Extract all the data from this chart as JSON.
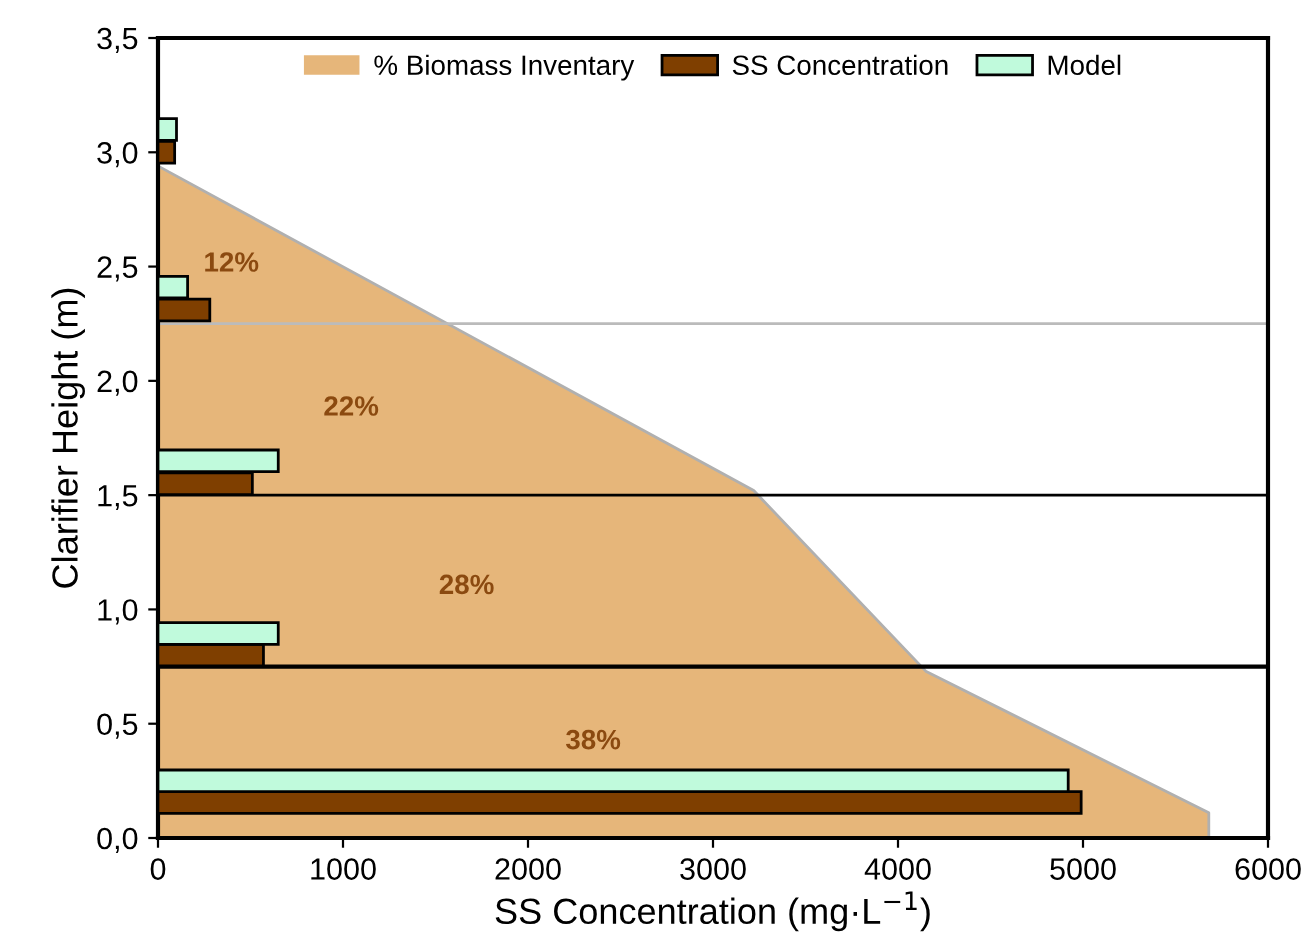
{
  "chart_data": {
    "type": "bar",
    "orientation": "horizontal",
    "xlabel": "SS Concentration (mg·L$^{−1}$)",
    "ylabel": "Clarifier Height (m)",
    "series": [
      {
        "name": "% Biomass Inventary",
        "type": "area",
        "color": "#e6b67a",
        "x": [
          0,
          0.11,
          0.73,
          1.52,
          2.94
        ],
        "values": [
          5680,
          5680,
          4150,
          3220,
          0
        ]
      },
      {
        "name": "SS Concentration",
        "color": "#7f3f00",
        "x": [
          0.155,
          0.8,
          1.55,
          2.31,
          3.0
        ],
        "values": [
          4990,
          570,
          510,
          280,
          90
        ]
      },
      {
        "name": "Model",
        "color": "#c0fadc",
        "x": [
          0.25,
          0.895,
          1.65,
          2.41,
          3.1
        ],
        "values": [
          4920,
          650,
          650,
          160,
          100
        ]
      }
    ],
    "xlim": [
      0,
      6000
    ],
    "xticks": [
      0,
      1000,
      2000,
      3000,
      4000,
      5000,
      6000
    ],
    "ylim": [
      0,
      3.5
    ],
    "yticks": [
      {
        "value": 0,
        "label": "0,0"
      },
      {
        "value": 0.5,
        "label": "0,5"
      },
      {
        "value": 1,
        "label": "1,0"
      },
      {
        "value": 1.5,
        "label": "1,5"
      },
      {
        "value": 2,
        "label": "2,0"
      },
      {
        "value": 2.5,
        "label": "2,5"
      },
      {
        "value": 3,
        "label": "3,0"
      },
      {
        "value": 3.5,
        "label": "3,5"
      }
    ],
    "ref_lines": [
      {
        "axis": "y",
        "value": 2.25,
        "color": "#bbbbbb"
      },
      {
        "axis": "y",
        "value": 1.5,
        "color": "#000000"
      },
      {
        "axis": "y",
        "value": 0.75,
        "color": "#000000"
      }
    ],
    "annotations": [
      "12%",
      "22%",
      "28%",
      "38%"
    ],
    "legend": "top",
    "grid": false
  }
}
